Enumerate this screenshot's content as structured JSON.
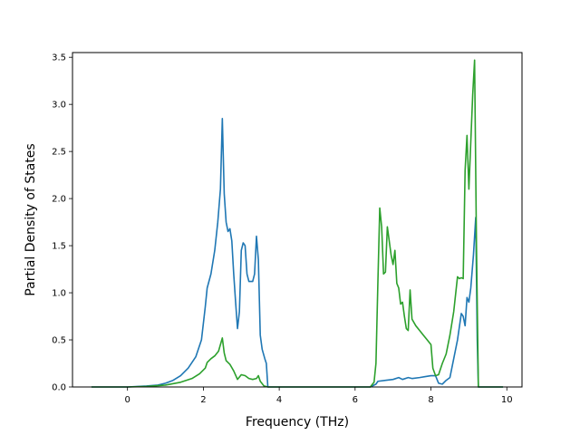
{
  "chart_data": {
    "type": "line",
    "title": "",
    "xlabel": "Frequency (THz)",
    "ylabel": "Partial Density of States",
    "xlim": [
      -1.45,
      10.4
    ],
    "ylim": [
      0.0,
      3.55
    ],
    "xticks": [
      0,
      2,
      4,
      6,
      8,
      10
    ],
    "yticks": [
      0.0,
      0.5,
      1.0,
      1.5,
      2.0,
      2.5,
      3.0,
      3.5
    ],
    "xtick_labels": [
      "0",
      "2",
      "4",
      "6",
      "8",
      "10"
    ],
    "ytick_labels": [
      "0.0",
      "0.5",
      "1.0",
      "1.5",
      "2.0",
      "2.5",
      "3.0",
      "3.5"
    ],
    "grid": false,
    "legend": "none",
    "series": [
      {
        "color": "#1f77b4",
        "points": [
          [
            -0.95,
            0.0
          ],
          [
            0.0,
            0.0
          ],
          [
            0.5,
            0.01
          ],
          [
            0.8,
            0.02
          ],
          [
            1.0,
            0.04
          ],
          [
            1.2,
            0.07
          ],
          [
            1.4,
            0.12
          ],
          [
            1.6,
            0.2
          ],
          [
            1.8,
            0.32
          ],
          [
            1.95,
            0.5
          ],
          [
            2.05,
            0.85
          ],
          [
            2.1,
            1.05
          ],
          [
            2.2,
            1.2
          ],
          [
            2.3,
            1.45
          ],
          [
            2.38,
            1.75
          ],
          [
            2.45,
            2.1
          ],
          [
            2.5,
            2.85
          ],
          [
            2.55,
            2.05
          ],
          [
            2.6,
            1.75
          ],
          [
            2.65,
            1.65
          ],
          [
            2.7,
            1.68
          ],
          [
            2.75,
            1.55
          ],
          [
            2.8,
            1.2
          ],
          [
            2.85,
            0.9
          ],
          [
            2.9,
            0.62
          ],
          [
            2.95,
            0.8
          ],
          [
            3.0,
            1.45
          ],
          [
            3.05,
            1.53
          ],
          [
            3.1,
            1.5
          ],
          [
            3.15,
            1.2
          ],
          [
            3.2,
            1.12
          ],
          [
            3.3,
            1.12
          ],
          [
            3.35,
            1.2
          ],
          [
            3.4,
            1.6
          ],
          [
            3.45,
            1.35
          ],
          [
            3.5,
            0.55
          ],
          [
            3.55,
            0.4
          ],
          [
            3.62,
            0.3
          ],
          [
            3.66,
            0.25
          ],
          [
            3.7,
            0.0
          ],
          [
            6.4,
            0.0
          ],
          [
            6.55,
            0.03
          ],
          [
            6.6,
            0.06
          ],
          [
            6.8,
            0.07
          ],
          [
            7.0,
            0.08
          ],
          [
            7.15,
            0.1
          ],
          [
            7.25,
            0.08
          ],
          [
            7.4,
            0.1
          ],
          [
            7.5,
            0.09
          ],
          [
            7.7,
            0.1
          ],
          [
            7.85,
            0.11
          ],
          [
            8.0,
            0.12
          ],
          [
            8.12,
            0.12
          ],
          [
            8.2,
            0.04
          ],
          [
            8.3,
            0.03
          ],
          [
            8.4,
            0.07
          ],
          [
            8.5,
            0.1
          ],
          [
            8.6,
            0.3
          ],
          [
            8.7,
            0.5
          ],
          [
            8.8,
            0.78
          ],
          [
            8.85,
            0.75
          ],
          [
            8.9,
            0.65
          ],
          [
            8.95,
            0.95
          ],
          [
            9.0,
            0.9
          ],
          [
            9.05,
            1.05
          ],
          [
            9.12,
            1.4
          ],
          [
            9.18,
            1.8
          ],
          [
            9.22,
            0.5
          ],
          [
            9.25,
            0.0
          ],
          [
            9.9,
            0.0
          ]
        ]
      },
      {
        "color": "#2ca02c",
        "points": [
          [
            -0.95,
            0.0
          ],
          [
            0.0,
            0.0
          ],
          [
            0.5,
            0.005
          ],
          [
            1.0,
            0.02
          ],
          [
            1.4,
            0.05
          ],
          [
            1.7,
            0.09
          ],
          [
            1.9,
            0.14
          ],
          [
            2.05,
            0.2
          ],
          [
            2.1,
            0.26
          ],
          [
            2.2,
            0.3
          ],
          [
            2.3,
            0.33
          ],
          [
            2.4,
            0.38
          ],
          [
            2.45,
            0.45
          ],
          [
            2.5,
            0.52
          ],
          [
            2.55,
            0.36
          ],
          [
            2.6,
            0.28
          ],
          [
            2.7,
            0.24
          ],
          [
            2.8,
            0.17
          ],
          [
            2.9,
            0.08
          ],
          [
            3.0,
            0.13
          ],
          [
            3.1,
            0.12
          ],
          [
            3.2,
            0.09
          ],
          [
            3.3,
            0.08
          ],
          [
            3.4,
            0.09
          ],
          [
            3.45,
            0.12
          ],
          [
            3.5,
            0.06
          ],
          [
            3.6,
            0.01
          ],
          [
            3.7,
            0.0
          ],
          [
            6.4,
            0.0
          ],
          [
            6.5,
            0.05
          ],
          [
            6.55,
            0.25
          ],
          [
            6.6,
            1.1
          ],
          [
            6.65,
            1.9
          ],
          [
            6.7,
            1.7
          ],
          [
            6.75,
            1.2
          ],
          [
            6.8,
            1.22
          ],
          [
            6.85,
            1.7
          ],
          [
            6.9,
            1.55
          ],
          [
            6.95,
            1.4
          ],
          [
            7.0,
            1.3
          ],
          [
            7.05,
            1.45
          ],
          [
            7.1,
            1.1
          ],
          [
            7.15,
            1.05
          ],
          [
            7.2,
            0.88
          ],
          [
            7.25,
            0.9
          ],
          [
            7.3,
            0.75
          ],
          [
            7.35,
            0.62
          ],
          [
            7.4,
            0.6
          ],
          [
            7.45,
            1.03
          ],
          [
            7.5,
            0.72
          ],
          [
            7.6,
            0.65
          ],
          [
            7.7,
            0.6
          ],
          [
            7.8,
            0.55
          ],
          [
            7.9,
            0.5
          ],
          [
            8.0,
            0.45
          ],
          [
            8.05,
            0.2
          ],
          [
            8.12,
            0.12
          ],
          [
            8.2,
            0.13
          ],
          [
            8.3,
            0.25
          ],
          [
            8.4,
            0.35
          ],
          [
            8.5,
            0.55
          ],
          [
            8.6,
            0.8
          ],
          [
            8.7,
            1.17
          ],
          [
            8.75,
            1.15
          ],
          [
            8.8,
            1.16
          ],
          [
            8.85,
            1.15
          ],
          [
            8.9,
            2.3
          ],
          [
            8.95,
            2.67
          ],
          [
            9.0,
            2.1
          ],
          [
            9.05,
            2.6
          ],
          [
            9.1,
            3.1
          ],
          [
            9.15,
            3.47
          ],
          [
            9.2,
            1.5
          ],
          [
            9.25,
            0.0
          ],
          [
            9.9,
            0.0
          ]
        ]
      }
    ]
  }
}
